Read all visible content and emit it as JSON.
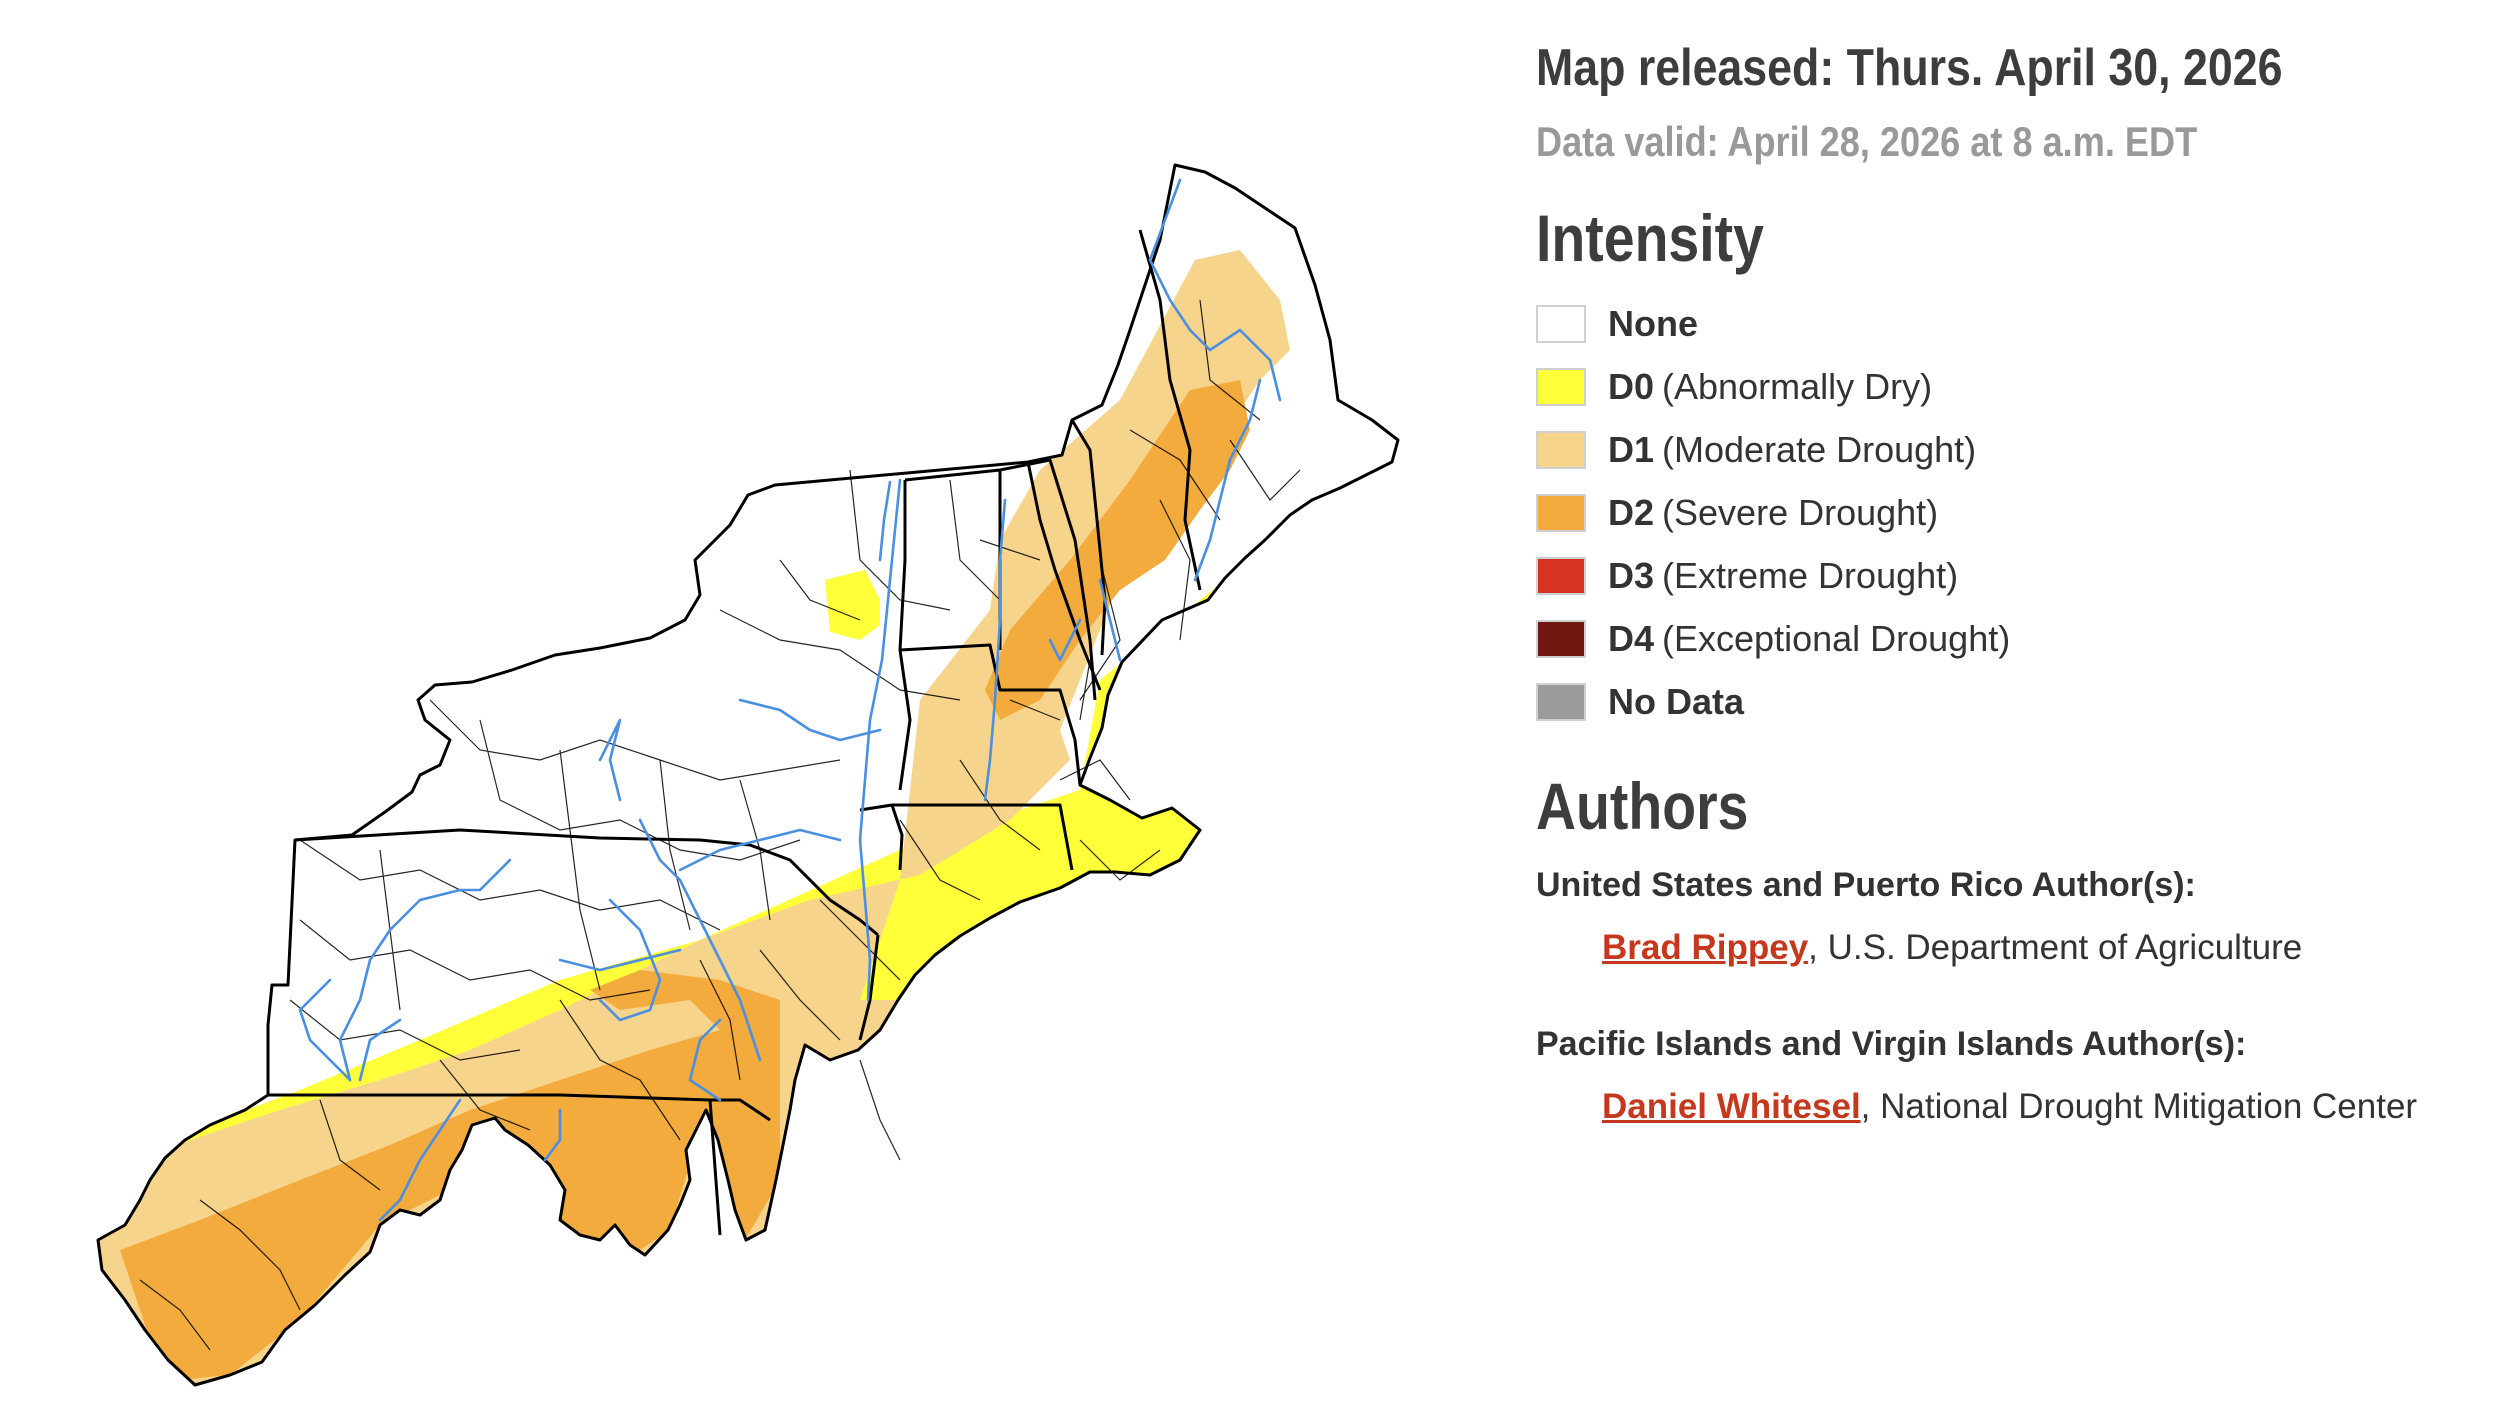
{
  "header": {
    "released": "Map released: Thurs. April 30, 2026",
    "valid": "Data valid: April 28, 2026 at 8 a.m. EDT"
  },
  "legend": {
    "title": "Intensity",
    "items": [
      {
        "code": "None",
        "desc": "",
        "color": "#ffffff"
      },
      {
        "code": "D0",
        "desc": "(Abnormally Dry)",
        "color": "#ffff3a"
      },
      {
        "code": "D1",
        "desc": "(Moderate Drought)",
        "color": "#f7d48c"
      },
      {
        "code": "D2",
        "desc": "(Severe Drought)",
        "color": "#f3ab3e"
      },
      {
        "code": "D3",
        "desc": "(Extreme Drought)",
        "color": "#d83223"
      },
      {
        "code": "D4",
        "desc": "(Exceptional Drought)",
        "color": "#701710"
      },
      {
        "code": "No Data",
        "desc": "",
        "color": "#9b9b9b"
      }
    ]
  },
  "authors": {
    "title": "Authors",
    "groups": [
      {
        "heading": "United States and Puerto Rico Author(s):",
        "name": "Brad Rippey",
        "affiliation": ", U.S. Department of Agriculture"
      },
      {
        "heading": "Pacific Islands and Virgin Islands Author(s):",
        "name": "Daniel Whitesel",
        "affiliation": ", National Drought Mitigation Center"
      }
    ]
  },
  "map": {
    "region": "Northeast",
    "colors": {
      "none": "#ffffff",
      "d0": "#ffff3a",
      "d1": "#f7d48c",
      "d2": "#f3ab3e",
      "river": "#4a8fe0",
      "border": "#000000"
    }
  }
}
